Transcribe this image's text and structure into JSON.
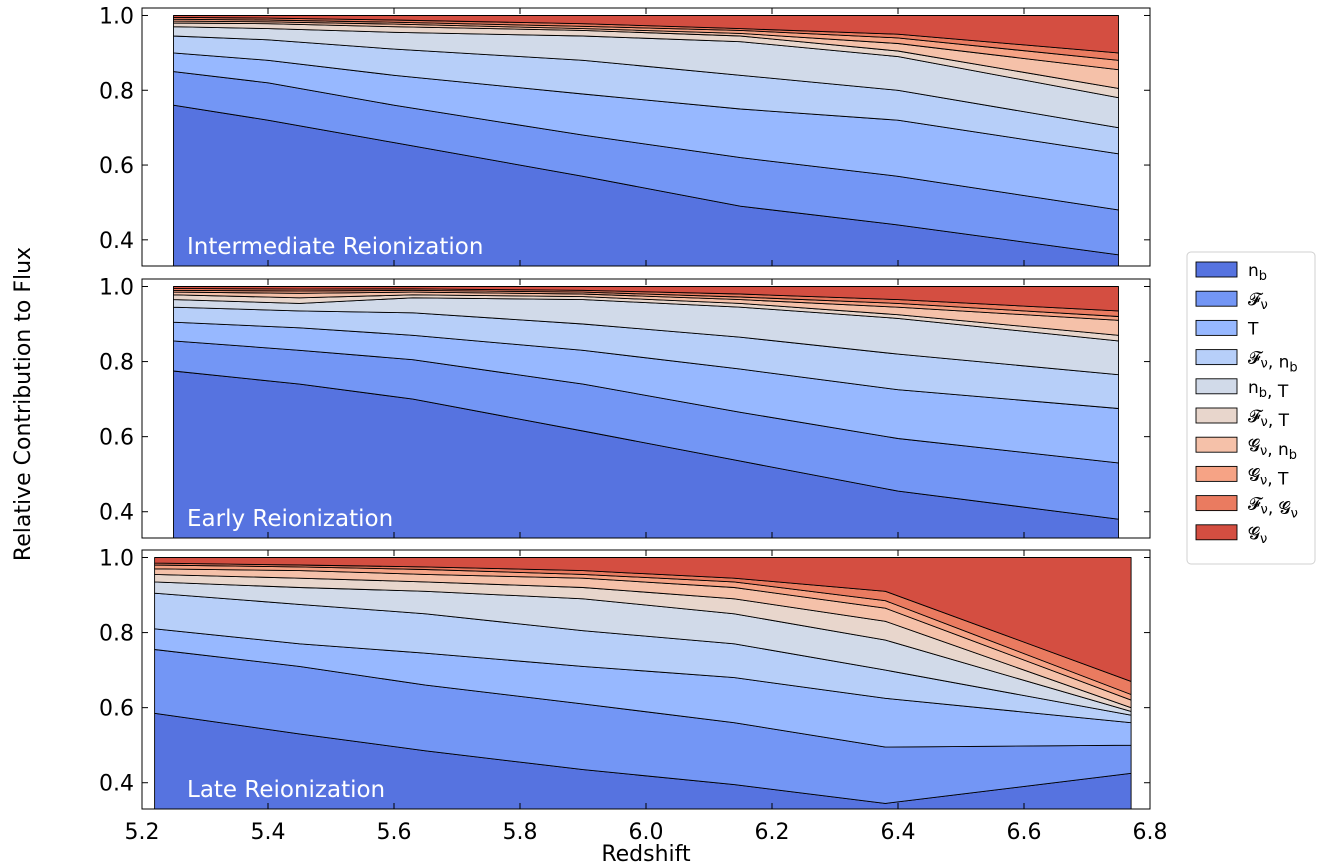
{
  "figure": {
    "ylabel": "Relative Contribution to Flux",
    "xlabel": "Redshift"
  },
  "legend": {
    "placement": "right",
    "entries": [
      {
        "label": "n_b",
        "color": "#5673e0"
      },
      {
        "label": "𝓕_ν",
        "color": "#7396f5"
      },
      {
        "label": "T",
        "color": "#97b8ff"
      },
      {
        "label": "𝓕_ν, n_b",
        "color": "#b7cff9"
      },
      {
        "label": "n_b, T",
        "color": "#d1dae9"
      },
      {
        "label": "𝓕_ν, T",
        "color": "#e8d6cc"
      },
      {
        "label": "𝓖_ν, n_b",
        "color": "#f5c1a9"
      },
      {
        "label": "𝓖_ν, T",
        "color": "#f6a385"
      },
      {
        "label": "𝓕_ν, 𝓖_ν",
        "color": "#ea7b60"
      },
      {
        "label": "𝓖_ν",
        "color": "#d44e41"
      }
    ]
  },
  "chart_data": [
    {
      "type": "area",
      "stacked": true,
      "title": "Intermediate Reionization",
      "xlabel": "",
      "ylabel": "",
      "xlim": [
        5.2,
        6.8
      ],
      "ylim": [
        0.33,
        1.02
      ],
      "xticks": [
        5.2,
        5.4,
        5.6,
        5.8,
        6.0,
        6.2,
        6.4,
        6.6,
        6.8
      ],
      "yticks": [
        0.4,
        0.6,
        0.8,
        1.0
      ],
      "ytick_labels": [
        "0.4",
        "0.6",
        "0.8",
        "1.0"
      ],
      "x": [
        5.25,
        5.4,
        5.6,
        5.9,
        6.15,
        6.4,
        6.75
      ],
      "boundaries": [
        [
          0.33,
          0.33,
          0.33,
          0.33,
          0.33,
          0.33,
          0.33
        ],
        [
          0.76,
          0.72,
          0.66,
          0.57,
          0.49,
          0.44,
          0.36
        ],
        [
          0.85,
          0.82,
          0.76,
          0.68,
          0.62,
          0.57,
          0.48
        ],
        [
          0.9,
          0.88,
          0.84,
          0.79,
          0.75,
          0.72,
          0.63
        ],
        [
          0.945,
          0.935,
          0.91,
          0.88,
          0.84,
          0.8,
          0.7
        ],
        [
          0.97,
          0.965,
          0.955,
          0.945,
          0.93,
          0.89,
          0.78
        ],
        [
          0.98,
          0.978,
          0.97,
          0.96,
          0.945,
          0.905,
          0.805
        ],
        [
          0.985,
          0.983,
          0.977,
          0.965,
          0.952,
          0.925,
          0.855
        ],
        [
          0.99,
          0.988,
          0.982,
          0.971,
          0.96,
          0.94,
          0.88
        ],
        [
          0.995,
          0.993,
          0.988,
          0.978,
          0.965,
          0.95,
          0.9
        ],
        [
          1.0,
          1.0,
          1.0,
          1.0,
          1.0,
          1.0,
          1.0
        ]
      ]
    },
    {
      "type": "area",
      "stacked": true,
      "title": "Early Reionization",
      "xlabel": "",
      "ylabel": "",
      "xlim": [
        5.2,
        6.8
      ],
      "ylim": [
        0.33,
        1.02
      ],
      "xticks": [
        5.2,
        5.4,
        5.6,
        5.8,
        6.0,
        6.2,
        6.4,
        6.6,
        6.8
      ],
      "yticks": [
        0.4,
        0.6,
        0.8,
        1.0
      ],
      "ytick_labels": [
        "0.4",
        "0.6",
        "0.8",
        "1.0"
      ],
      "x": [
        5.25,
        5.45,
        5.63,
        5.9,
        6.15,
        6.4,
        6.75
      ],
      "boundaries": [
        [
          0.33,
          0.33,
          0.33,
          0.33,
          0.33,
          0.33,
          0.33
        ],
        [
          0.775,
          0.74,
          0.7,
          0.615,
          0.535,
          0.455,
          0.38
        ],
        [
          0.855,
          0.83,
          0.805,
          0.74,
          0.665,
          0.595,
          0.53
        ],
        [
          0.905,
          0.89,
          0.87,
          0.83,
          0.78,
          0.725,
          0.675
        ],
        [
          0.945,
          0.935,
          0.93,
          0.9,
          0.865,
          0.82,
          0.765
        ],
        [
          0.965,
          0.955,
          0.97,
          0.965,
          0.945,
          0.915,
          0.855
        ],
        [
          0.978,
          0.97,
          0.978,
          0.973,
          0.955,
          0.925,
          0.87
        ],
        [
          0.985,
          0.982,
          0.985,
          0.98,
          0.965,
          0.945,
          0.91
        ],
        [
          0.99,
          0.988,
          0.99,
          0.985,
          0.972,
          0.955,
          0.92
        ],
        [
          0.995,
          0.993,
          0.994,
          0.99,
          0.98,
          0.965,
          0.935
        ],
        [
          1.0,
          1.0,
          1.0,
          1.0,
          1.0,
          1.0,
          1.0
        ]
      ]
    },
    {
      "type": "area",
      "stacked": true,
      "title": "Late Reionization",
      "xlabel": "Redshift",
      "ylabel": "",
      "xlim": [
        5.2,
        6.8
      ],
      "ylim": [
        0.33,
        1.02
      ],
      "xticks": [
        5.2,
        5.4,
        5.6,
        5.8,
        6.0,
        6.2,
        6.4,
        6.6,
        6.8
      ],
      "xtick_labels": [
        "5.2",
        "5.4",
        "5.6",
        "5.8",
        "6.0",
        "6.2",
        "6.4",
        "6.6",
        "6.8"
      ],
      "yticks": [
        0.4,
        0.6,
        0.8,
        1.0
      ],
      "ytick_labels": [
        "0.4",
        "0.6",
        "0.8",
        "1.0"
      ],
      "x": [
        5.22,
        5.45,
        5.65,
        5.9,
        6.14,
        6.38,
        6.77
      ],
      "boundaries": [
        [
          0.33,
          0.33,
          0.33,
          0.33,
          0.33,
          0.33,
          0.33
        ],
        [
          0.585,
          0.53,
          0.485,
          0.435,
          0.395,
          0.345,
          0.425
        ],
        [
          0.755,
          0.71,
          0.66,
          0.61,
          0.56,
          0.495,
          0.5
        ],
        [
          0.81,
          0.77,
          0.745,
          0.71,
          0.68,
          0.625,
          0.56
        ],
        [
          0.905,
          0.875,
          0.85,
          0.805,
          0.77,
          0.7,
          0.58
        ],
        [
          0.935,
          0.92,
          0.91,
          0.89,
          0.85,
          0.78,
          0.59
        ],
        [
          0.955,
          0.945,
          0.935,
          0.92,
          0.89,
          0.83,
          0.6
        ],
        [
          0.97,
          0.965,
          0.955,
          0.945,
          0.92,
          0.865,
          0.62
        ],
        [
          0.98,
          0.975,
          0.968,
          0.955,
          0.935,
          0.885,
          0.635
        ],
        [
          0.985,
          0.98,
          0.975,
          0.965,
          0.945,
          0.91,
          0.67
        ],
        [
          1.0,
          1.0,
          1.0,
          1.0,
          1.0,
          1.0,
          1.0
        ]
      ]
    }
  ]
}
